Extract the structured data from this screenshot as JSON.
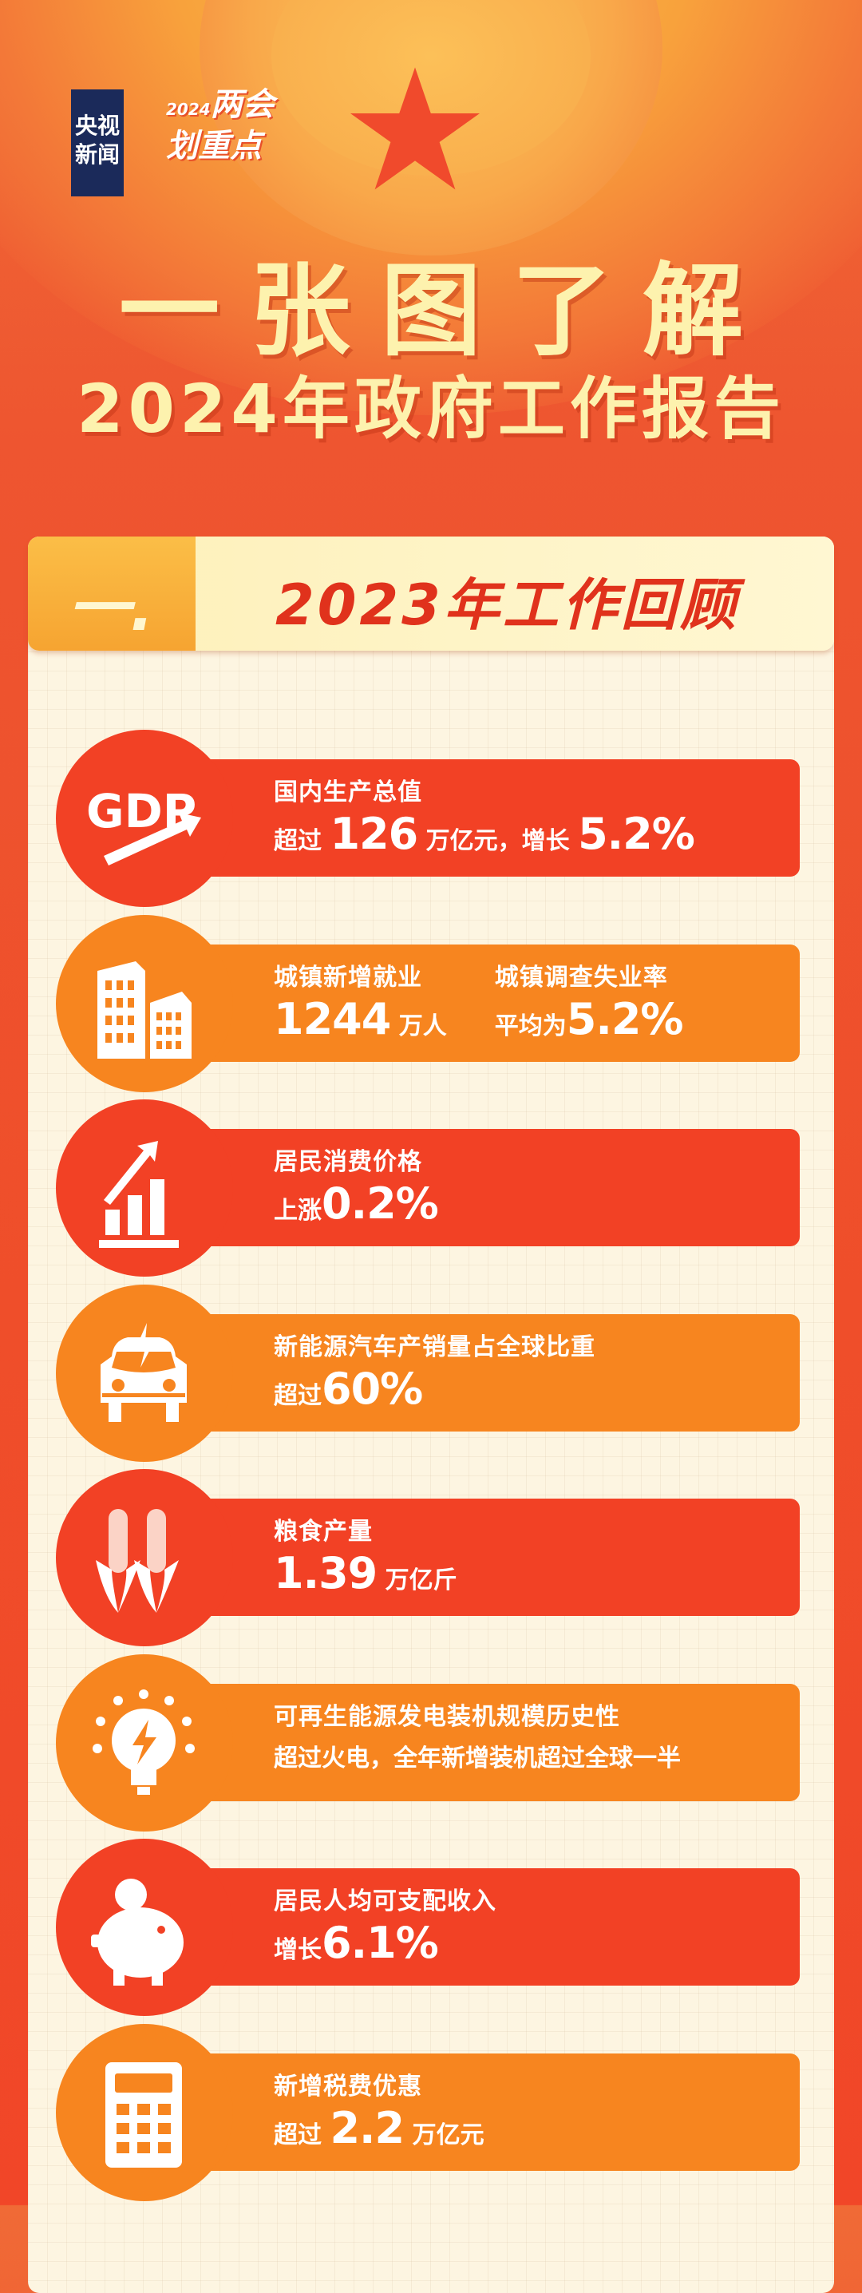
{
  "brand": {
    "logo_line1": "央视",
    "logo_line2": "新闻",
    "event_year": "2024",
    "event_line1": "两会",
    "event_line2": "划重点"
  },
  "title": {
    "line1": "一张图了解",
    "line2": "2024年政府工作报告"
  },
  "section": {
    "number": "一.",
    "heading": "2023年工作回顾"
  },
  "colors": {
    "red": "#f24125",
    "orange": "#f7851f",
    "cream": "#fdf5e1",
    "title": "#fdf2ae"
  },
  "items": [
    {
      "icon": "gdp-arrow-icon",
      "color": "red",
      "columns": [
        {
          "label": "国内生产总值",
          "value": [
            {
              "t": "超过 "
            },
            {
              "t": "126",
              "big": true
            },
            {
              "t": " 万亿元，增长 "
            },
            {
              "t": "5.2%",
              "big": true
            }
          ]
        }
      ]
    },
    {
      "icon": "buildings-icon",
      "color": "orange",
      "columns": [
        {
          "label": "城镇新增就业",
          "value": [
            {
              "t": "1244",
              "big": true
            },
            {
              "t": " 万人"
            }
          ]
        },
        {
          "label": "城镇调查失业率",
          "value": [
            {
              "t": "平均为"
            },
            {
              "t": "5.2%",
              "big": true
            }
          ]
        }
      ]
    },
    {
      "icon": "bar-chart-up-icon",
      "color": "red",
      "columns": [
        {
          "label": "居民消费价格",
          "value": [
            {
              "t": "上涨"
            },
            {
              "t": "0.2%",
              "big": true
            }
          ]
        }
      ]
    },
    {
      "icon": "electric-car-icon",
      "color": "orange",
      "columns": [
        {
          "label": "新能源汽车产销量占全球比重",
          "value": [
            {
              "t": "超过"
            },
            {
              "t": "60%",
              "big": true
            }
          ]
        }
      ]
    },
    {
      "icon": "corn-icon",
      "color": "red",
      "columns": [
        {
          "label": "粮食产量",
          "value": [
            {
              "t": "1.39",
              "big": true
            },
            {
              "t": " 万亿斤"
            }
          ]
        }
      ]
    },
    {
      "icon": "lightbulb-bolt-icon",
      "color": "orange",
      "columns": [
        {
          "label": "可再生能源发电装机规模历史性",
          "value": [
            {
              "t": "超过火电，全年新增装机超过全球一半"
            }
          ]
        }
      ]
    },
    {
      "icon": "piggy-bank-icon",
      "color": "red",
      "columns": [
        {
          "label": "居民人均可支配收入",
          "value": [
            {
              "t": "增长"
            },
            {
              "t": "6.1%",
              "big": true
            }
          ]
        }
      ]
    },
    {
      "icon": "calculator-icon",
      "color": "orange",
      "columns": [
        {
          "label": "新增税费优惠",
          "value": [
            {
              "t": "超过 "
            },
            {
              "t": "2.2",
              "big": true
            },
            {
              "t": " 万亿元"
            }
          ]
        }
      ]
    }
  ]
}
